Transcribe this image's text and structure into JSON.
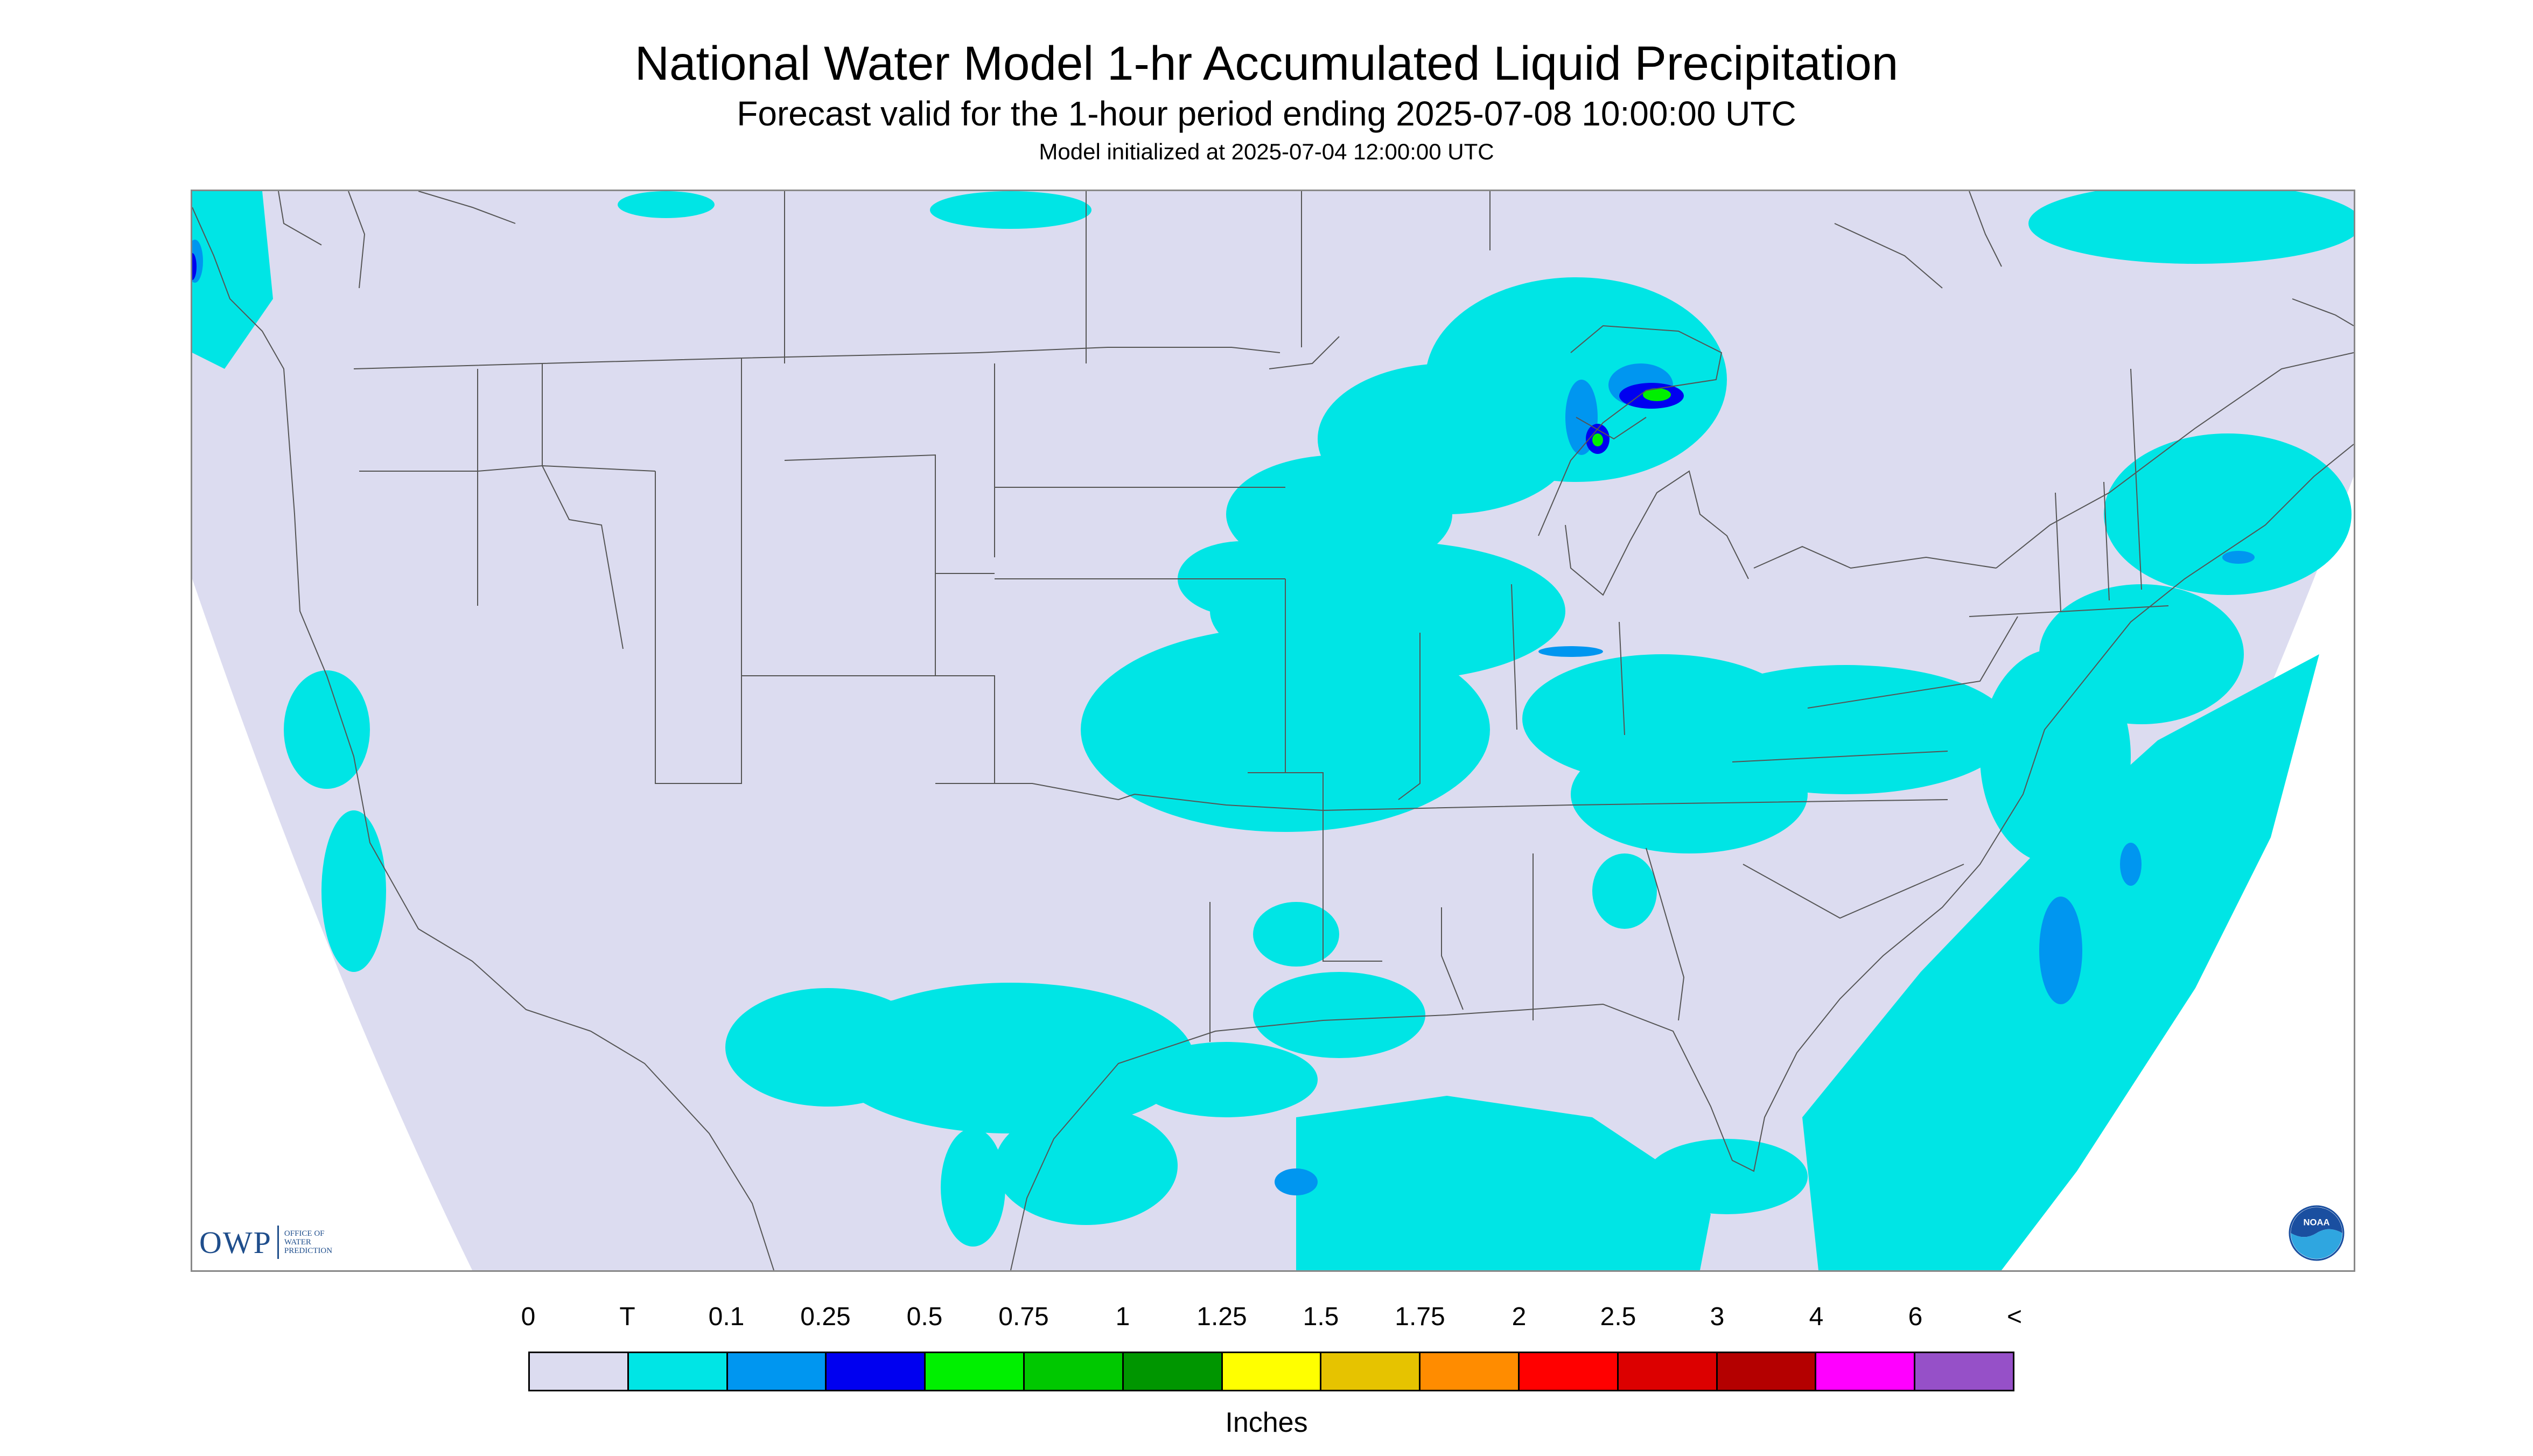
{
  "title": "National Water Model 1-hr Accumulated Liquid Precipitation",
  "subtitle": "Forecast valid for the 1-hour period ending 2025-07-08 10:00:00 UTC",
  "init_line": "Model initialized at 2025-07-04 12:00:00 UTC",
  "logos": {
    "owp_letters": "OWP",
    "owp_sub": "OFFICE OF WATER PREDICTION",
    "noaa_letters": "NOAA"
  },
  "legend": {
    "tick_labels": [
      "0",
      "T",
      "0.1",
      "0.25",
      "0.5",
      "0.75",
      "1",
      "1.25",
      "1.5",
      "1.75",
      "2",
      "2.5",
      "3",
      "4",
      "6",
      "<"
    ],
    "colors": [
      "#dcdcf0",
      "#00e5e5",
      "#0096f0",
      "#0000f0",
      "#00f000",
      "#00c800",
      "#009600",
      "#ffff00",
      "#e6c300",
      "#ff8c00",
      "#ff0000",
      "#dc0000",
      "#b40000",
      "#ff00ff",
      "#9650c8"
    ],
    "units": "Inches"
  },
  "map": {
    "background_color": "#dcdcf0",
    "outside_domain_color": "#ffffff",
    "boundary_color": "#555555",
    "trace_color": "#00e5e5",
    "light_color": "#0096f0",
    "moderate_color": "#0000f0",
    "heavy_color": "#00f000"
  }
}
